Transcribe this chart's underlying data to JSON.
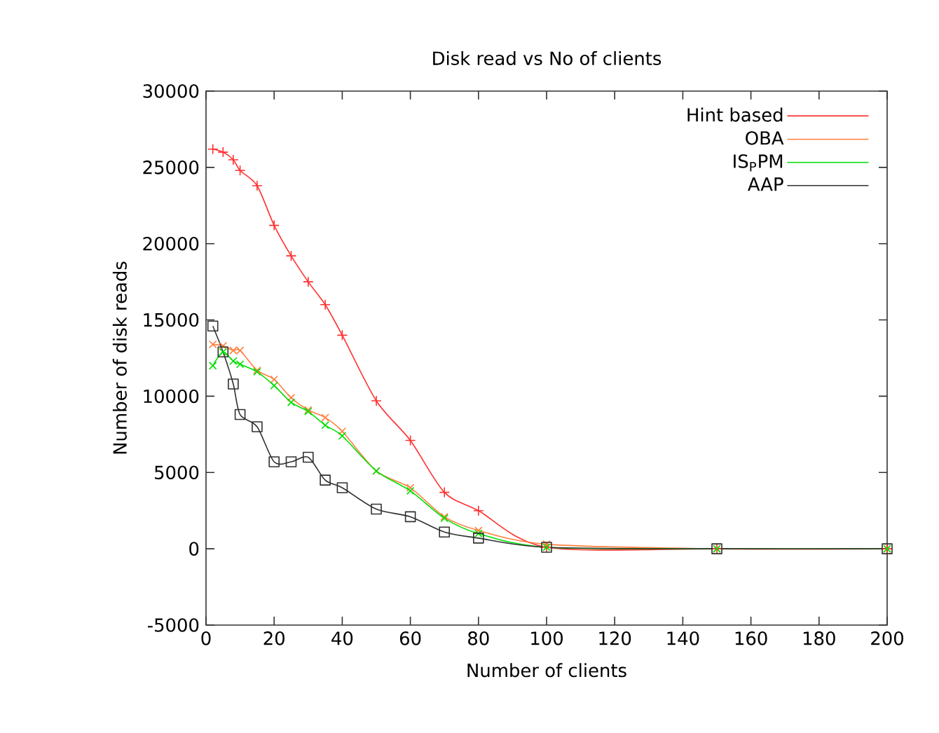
{
  "chart_data": {
    "type": "line",
    "title": "Disk read vs No of clients",
    "xlabel": "Number of clients",
    "ylabel": "Number of disk reads",
    "x": [
      2,
      5,
      8,
      10,
      15,
      20,
      25,
      30,
      35,
      40,
      50,
      60,
      70,
      80,
      100,
      150,
      200
    ],
    "series": [
      {
        "name": "Hint based",
        "color": "#ff3030",
        "marker": "plus",
        "values": [
          26200,
          26000,
          25500,
          24800,
          23800,
          21200,
          19200,
          17500,
          16000,
          14000,
          9700,
          7100,
          3700,
          2500,
          100,
          0,
          0
        ]
      },
      {
        "name": "OBA",
        "color": "#ff8040",
        "marker": "cross",
        "values": [
          13400,
          13300,
          13000,
          13000,
          11700,
          11100,
          9900,
          9100,
          8600,
          7700,
          5100,
          4000,
          2100,
          1200,
          300,
          0,
          0
        ]
      },
      {
        "name": "IS$_{P}$PM",
        "color": "#00e000",
        "marker": "cross",
        "values": [
          12000,
          12900,
          12300,
          12100,
          11600,
          10700,
          9600,
          9000,
          8100,
          7400,
          5100,
          3800,
          2000,
          1000,
          100,
          0,
          0
        ]
      },
      {
        "name": "AAP",
        "color": "#303030",
        "marker": "square",
        "values": [
          14600,
          12900,
          10800,
          8800,
          8000,
          5700,
          5700,
          6000,
          4500,
          4000,
          2600,
          2100,
          1100,
          700,
          100,
          0,
          0
        ]
      }
    ],
    "xlim": [
      0,
      200
    ],
    "xticks": [
      0,
      20,
      40,
      60,
      80,
      100,
      120,
      140,
      160,
      180,
      200
    ],
    "ylim": [
      -5000,
      30000
    ],
    "yticks": [
      -5000,
      0,
      5000,
      10000,
      15000,
      20000,
      25000,
      30000
    ],
    "legend": "top right",
    "grid": false,
    "line_style": "solid"
  }
}
